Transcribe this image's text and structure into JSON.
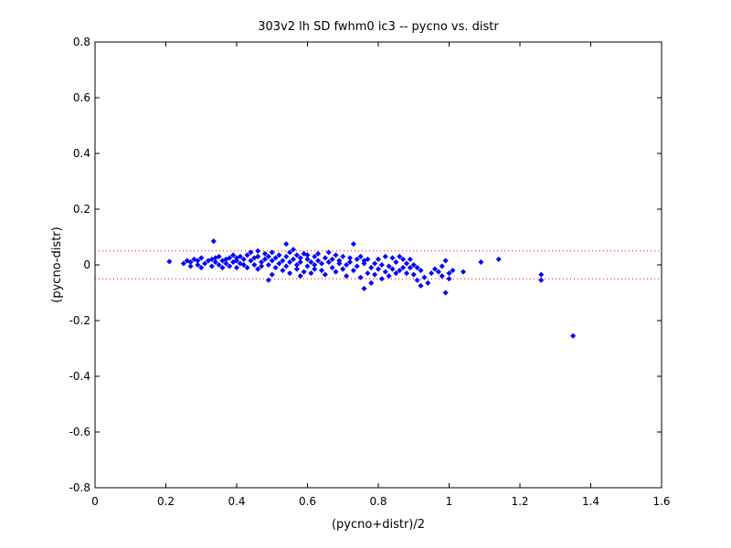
{
  "chart_data": {
    "type": "scatter",
    "title": "303v2 lh SD fwhm0 ic3 -- pycno vs. distr",
    "xlabel": "(pycno+distr)/2",
    "ylabel": "(pycno-distr)",
    "xlim": [
      0,
      1.6
    ],
    "ylim": [
      -0.8,
      0.8
    ],
    "xticks": [
      0,
      0.2,
      0.4,
      0.6,
      0.8,
      1,
      1.2,
      1.4,
      1.6
    ],
    "yticks": [
      -0.8,
      -0.6,
      -0.4,
      -0.2,
      0,
      0.2,
      0.4,
      0.6,
      0.8
    ],
    "xtick_labels": [
      "0",
      "0.2",
      "0.4",
      "0.6",
      "0.8",
      "1",
      "1.2",
      "1.4",
      "1.6"
    ],
    "ytick_labels": [
      "-0.8",
      "-0.6",
      "-0.4",
      "-0.2",
      "0",
      "0.2",
      "0.4",
      "0.6",
      "0.8"
    ],
    "grid": false,
    "reference_lines": [
      {
        "y": 0.05,
        "style": "dotted",
        "color": "#ff0000"
      },
      {
        "y": -0.05,
        "style": "dotted",
        "color": "#ff0000"
      }
    ],
    "series": [
      {
        "color": "#0000ff",
        "marker": "diamond",
        "points": [
          [
            0.21,
            0.012
          ],
          [
            0.25,
            0.005
          ],
          [
            0.26,
            0.015
          ],
          [
            0.27,
            0.01
          ],
          [
            0.27,
            -0.005
          ],
          [
            0.28,
            0.02
          ],
          [
            0.29,
            0.0
          ],
          [
            0.29,
            0.015
          ],
          [
            0.3,
            -0.01
          ],
          [
            0.3,
            0.025
          ],
          [
            0.31,
            0.005
          ],
          [
            0.32,
            0.015
          ],
          [
            0.33,
            -0.005
          ],
          [
            0.33,
            0.02
          ],
          [
            0.335,
            0.085
          ],
          [
            0.34,
            0.01
          ],
          [
            0.34,
            0.025
          ],
          [
            0.35,
            0.0
          ],
          [
            0.35,
            0.03
          ],
          [
            0.36,
            0.015
          ],
          [
            0.36,
            -0.01
          ],
          [
            0.37,
            0.02
          ],
          [
            0.37,
            0.005
          ],
          [
            0.38,
            0.025
          ],
          [
            0.38,
            -0.005
          ],
          [
            0.39,
            0.01
          ],
          [
            0.39,
            0.035
          ],
          [
            0.4,
            0.015
          ],
          [
            0.4,
            -0.01
          ],
          [
            0.4,
            0.025
          ],
          [
            0.41,
            0.005
          ],
          [
            0.41,
            0.03
          ],
          [
            0.42,
            0.0
          ],
          [
            0.42,
            0.02
          ],
          [
            0.43,
            0.035
          ],
          [
            0.43,
            -0.01
          ],
          [
            0.44,
            0.015
          ],
          [
            0.44,
            0.045
          ],
          [
            0.45,
            0.0
          ],
          [
            0.45,
            0.025
          ],
          [
            0.46,
            -0.015
          ],
          [
            0.46,
            0.03
          ],
          [
            0.46,
            0.05
          ],
          [
            0.47,
            0.01
          ],
          [
            0.47,
            -0.005
          ],
          [
            0.48,
            0.04
          ],
          [
            0.48,
            0.02
          ],
          [
            0.49,
            -0.055
          ],
          [
            0.49,
            0.0
          ],
          [
            0.49,
            0.03
          ],
          [
            0.5,
            -0.035
          ],
          [
            0.5,
            0.015
          ],
          [
            0.5,
            0.045
          ],
          [
            0.51,
            -0.01
          ],
          [
            0.51,
            0.025
          ],
          [
            0.52,
            0.005
          ],
          [
            0.52,
            0.035
          ],
          [
            0.53,
            -0.02
          ],
          [
            0.53,
            0.015
          ],
          [
            0.54,
            0.03
          ],
          [
            0.54,
            0.075
          ],
          [
            0.54,
            -0.005
          ],
          [
            0.55,
            0.01
          ],
          [
            0.55,
            0.045
          ],
          [
            0.55,
            -0.03
          ],
          [
            0.56,
            0.02
          ],
          [
            0.56,
            0.055
          ],
          [
            0.57,
            -0.015
          ],
          [
            0.57,
            0.0
          ],
          [
            0.57,
            0.035
          ],
          [
            0.58,
            -0.04
          ],
          [
            0.58,
            0.01
          ],
          [
            0.58,
            0.025
          ],
          [
            0.59,
            -0.025
          ],
          [
            0.59,
            0.04
          ],
          [
            0.6,
            -0.005
          ],
          [
            0.6,
            0.02
          ],
          [
            0.6,
            0.035
          ],
          [
            0.61,
            -0.03
          ],
          [
            0.61,
            0.01
          ],
          [
            0.62,
            0.0
          ],
          [
            0.62,
            0.03
          ],
          [
            0.62,
            -0.015
          ],
          [
            0.63,
            0.015
          ],
          [
            0.63,
            0.04
          ],
          [
            0.64,
            -0.02
          ],
          [
            0.64,
            0.005
          ],
          [
            0.65,
            0.025
          ],
          [
            0.65,
            -0.035
          ],
          [
            0.66,
            0.01
          ],
          [
            0.66,
            0.045
          ],
          [
            0.67,
            -0.01
          ],
          [
            0.67,
            0.02
          ],
          [
            0.68,
            -0.025
          ],
          [
            0.68,
            0.035
          ],
          [
            0.69,
            0.005
          ],
          [
            0.69,
            0.015
          ],
          [
            0.7,
            -0.015
          ],
          [
            0.7,
            0.03
          ],
          [
            0.71,
            0.0
          ],
          [
            0.71,
            -0.04
          ],
          [
            0.72,
            0.025
          ],
          [
            0.72,
            0.01
          ],
          [
            0.73,
            0.075
          ],
          [
            0.73,
            -0.02
          ],
          [
            0.74,
            0.02
          ],
          [
            0.74,
            -0.005
          ],
          [
            0.75,
            0.03
          ],
          [
            0.75,
            -0.045
          ],
          [
            0.76,
            0.005
          ],
          [
            0.76,
            -0.085
          ],
          [
            0.76,
            0.015
          ],
          [
            0.77,
            -0.03
          ],
          [
            0.77,
            0.02
          ],
          [
            0.78,
            -0.01
          ],
          [
            0.78,
            -0.065
          ],
          [
            0.79,
            0.005
          ],
          [
            0.79,
            -0.035
          ],
          [
            0.8,
            -0.015
          ],
          [
            0.8,
            0.02
          ],
          [
            0.81,
            -0.05
          ],
          [
            0.81,
            0.0
          ],
          [
            0.82,
            -0.025
          ],
          [
            0.82,
            0.03
          ],
          [
            0.83,
            -0.005
          ],
          [
            0.83,
            -0.04
          ],
          [
            0.84,
            0.025
          ],
          [
            0.84,
            -0.015
          ],
          [
            0.85,
            -0.03
          ],
          [
            0.85,
            0.01
          ],
          [
            0.86,
            -0.02
          ],
          [
            0.86,
            0.03
          ],
          [
            0.87,
            -0.01
          ],
          [
            0.87,
            0.02
          ],
          [
            0.88,
            -0.03
          ],
          [
            0.88,
            0.005
          ],
          [
            0.89,
            -0.01
          ],
          [
            0.89,
            0.02
          ],
          [
            0.9,
            -0.035
          ],
          [
            0.9,
            0.0
          ],
          [
            0.91,
            -0.055
          ],
          [
            0.91,
            -0.01
          ],
          [
            0.92,
            -0.075
          ],
          [
            0.92,
            -0.02
          ],
          [
            0.93,
            -0.045
          ],
          [
            0.94,
            -0.065
          ],
          [
            0.95,
            -0.03
          ],
          [
            0.96,
            -0.015
          ],
          [
            0.97,
            -0.025
          ],
          [
            0.98,
            -0.005
          ],
          [
            0.98,
            -0.04
          ],
          [
            0.99,
            -0.1
          ],
          [
            0.99,
            0.015
          ],
          [
            1.0,
            -0.03
          ],
          [
            1.0,
            -0.05
          ],
          [
            1.01,
            -0.02
          ],
          [
            1.04,
            -0.025
          ],
          [
            1.09,
            0.01
          ],
          [
            1.14,
            0.02
          ],
          [
            1.26,
            -0.035
          ],
          [
            1.26,
            -0.055
          ],
          [
            1.35,
            -0.255
          ]
        ]
      }
    ]
  }
}
